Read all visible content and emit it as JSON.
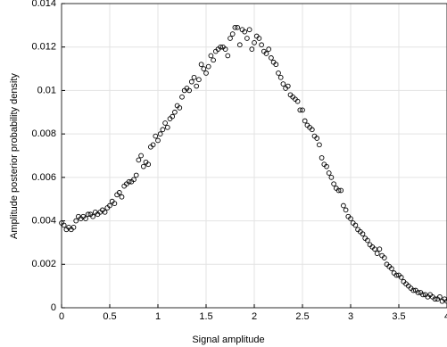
{
  "chart_data": {
    "type": "scatter",
    "xlabel": "Signal amplitude",
    "ylabel": "Amplitude posterior probability density",
    "xlim": [
      0,
      4
    ],
    "ylim": [
      0,
      0.014
    ],
    "xticks": [
      0,
      0.5,
      1,
      1.5,
      2,
      2.5,
      3,
      3.5,
      4
    ],
    "yticks": [
      0,
      0.002,
      0.004,
      0.006,
      0.008,
      0.01,
      0.012,
      0.014
    ],
    "grid": true,
    "color": "#000000",
    "x": [
      0,
      0.025,
      0.05,
      0.075,
      0.1,
      0.125,
      0.15,
      0.175,
      0.2,
      0.225,
      0.25,
      0.275,
      0.3,
      0.325,
      0.35,
      0.375,
      0.4,
      0.425,
      0.45,
      0.475,
      0.5,
      0.525,
      0.55,
      0.575,
      0.6,
      0.625,
      0.65,
      0.675,
      0.7,
      0.725,
      0.75,
      0.775,
      0.8,
      0.825,
      0.85,
      0.875,
      0.9,
      0.925,
      0.95,
      0.975,
      1,
      1.025,
      1.05,
      1.075,
      1.1,
      1.125,
      1.15,
      1.175,
      1.2,
      1.225,
      1.25,
      1.275,
      1.3,
      1.325,
      1.35,
      1.375,
      1.4,
      1.425,
      1.45,
      1.475,
      1.5,
      1.525,
      1.55,
      1.575,
      1.6,
      1.625,
      1.65,
      1.675,
      1.7,
      1.725,
      1.75,
      1.775,
      1.8,
      1.825,
      1.85,
      1.875,
      1.9,
      1.925,
      1.95,
      1.975,
      2,
      2.025,
      2.05,
      2.075,
      2.1,
      2.125,
      2.15,
      2.175,
      2.2,
      2.225,
      2.25,
      2.275,
      2.3,
      2.325,
      2.35,
      2.375,
      2.4,
      2.425,
      2.45,
      2.475,
      2.5,
      2.525,
      2.55,
      2.575,
      2.6,
      2.625,
      2.65,
      2.675,
      2.7,
      2.725,
      2.75,
      2.775,
      2.8,
      2.825,
      2.85,
      2.875,
      2.9,
      2.925,
      2.95,
      2.975,
      3,
      3.025,
      3.05,
      3.075,
      3.1,
      3.125,
      3.15,
      3.175,
      3.2,
      3.225,
      3.25,
      3.275,
      3.3,
      3.325,
      3.35,
      3.375,
      3.4,
      3.425,
      3.45,
      3.475,
      3.5,
      3.525,
      3.55,
      3.575,
      3.6,
      3.625,
      3.65,
      3.675,
      3.7,
      3.725,
      3.75,
      3.775,
      3.8,
      3.825,
      3.85,
      3.875,
      3.9,
      3.925,
      3.95,
      3.975,
      4
    ],
    "values": [
      0.0039,
      0.0038,
      0.0036,
      0.0037,
      0.0036,
      0.0037,
      0.004,
      0.0042,
      0.0041,
      0.0042,
      0.0041,
      0.0043,
      0.0043,
      0.0042,
      0.0044,
      0.0043,
      0.0044,
      0.0045,
      0.0044,
      0.0046,
      0.0047,
      0.0049,
      0.0048,
      0.0052,
      0.0053,
      0.0051,
      0.0056,
      0.0057,
      0.0058,
      0.0058,
      0.0059,
      0.0061,
      0.0068,
      0.007,
      0.0065,
      0.0067,
      0.0066,
      0.0074,
      0.0075,
      0.0079,
      0.0077,
      0.008,
      0.0082,
      0.0085,
      0.0083,
      0.0087,
      0.0088,
      0.009,
      0.0093,
      0.0092,
      0.0097,
      0.01,
      0.0101,
      0.01,
      0.0104,
      0.0106,
      0.0102,
      0.0105,
      0.0112,
      0.011,
      0.0108,
      0.0111,
      0.0116,
      0.0114,
      0.0118,
      0.0119,
      0.012,
      0.012,
      0.0119,
      0.0116,
      0.0124,
      0.0126,
      0.0129,
      0.0129,
      0.0121,
      0.0128,
      0.0127,
      0.0124,
      0.0128,
      0.0119,
      0.0122,
      0.0125,
      0.0124,
      0.0121,
      0.0118,
      0.0117,
      0.0119,
      0.0115,
      0.0113,
      0.0112,
      0.0108,
      0.0106,
      0.0103,
      0.0101,
      0.0102,
      0.0098,
      0.0097,
      0.0096,
      0.0095,
      0.0091,
      0.0091,
      0.0086,
      0.0084,
      0.0083,
      0.0082,
      0.0079,
      0.0078,
      0.0075,
      0.0069,
      0.0066,
      0.0065,
      0.0062,
      0.006,
      0.0057,
      0.0055,
      0.0054,
      0.0054,
      0.0047,
      0.0045,
      0.0042,
      0.0041,
      0.0039,
      0.0038,
      0.0036,
      0.0035,
      0.0034,
      0.0032,
      0.0031,
      0.0029,
      0.0028,
      0.0027,
      0.0025,
      0.0027,
      0.0024,
      0.0023,
      0.002,
      0.0019,
      0.0018,
      0.0016,
      0.0015,
      0.0015,
      0.0014,
      0.0012,
      0.0011,
      0.001,
      0.0009,
      0.0008,
      0.0008,
      0.0007,
      0.0007,
      0.0006,
      0.0006,
      0.0005,
      0.0006,
      0.0005,
      0.0004,
      0.0004,
      0.0005,
      0.0003,
      0.0004,
      0.0003
    ]
  }
}
